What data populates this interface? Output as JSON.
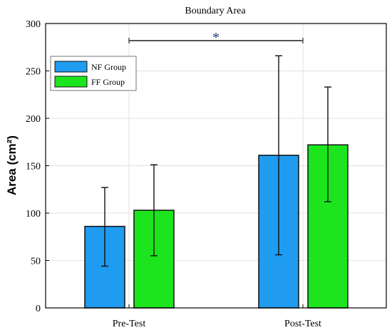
{
  "chart_data": {
    "type": "bar",
    "title": "Boundary Area",
    "xlabel": "",
    "ylabel": "Area (cm²)",
    "categories": [
      "Pre-Test",
      "Post-Test"
    ],
    "series": [
      {
        "name": "NF Group",
        "values": [
          86,
          161
        ],
        "error_low": [
          44,
          56
        ],
        "error_high": [
          127,
          266
        ],
        "color": "#1f9bf0"
      },
      {
        "name": "FF Group",
        "values": [
          103,
          172
        ],
        "error_low": [
          55,
          112
        ],
        "error_high": [
          151,
          233
        ],
        "color": "#1de51d"
      }
    ],
    "ylim": [
      0,
      300
    ],
    "yticks": [
      "0",
      "50",
      "100",
      "150",
      "200",
      "250",
      "300"
    ],
    "grid": true,
    "legend_position": "top-left",
    "significance": {
      "symbol": "*",
      "between": [
        "Pre-Test",
        "Post-Test"
      ]
    }
  }
}
